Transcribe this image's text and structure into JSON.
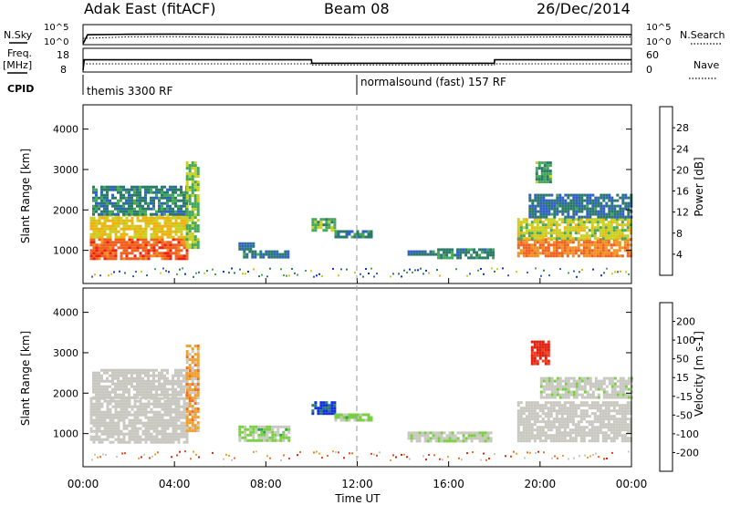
{
  "header": {
    "radar": "Adak East (fitACF)",
    "beam": "Beam 08",
    "date": "26/Dec/2014"
  },
  "left_labels": {
    "nsky": "N.Sky",
    "freq_top": "Freq.",
    "freq_unit": "[MHz]",
    "cpid": "CPID"
  },
  "right_labels": {
    "nsearch": "N.Search",
    "nave": "Nave"
  },
  "ticks": {
    "noise_left": [
      "10^5",
      "10^0"
    ],
    "noise_right": [
      "10^5",
      "10^0"
    ],
    "freq_left": [
      "18",
      "8"
    ],
    "freq_right": [
      "60",
      "0"
    ]
  },
  "cpid": {
    "program1": "themis 3300 RF",
    "program2": "normalsound (fast) 157 RF"
  },
  "colors": {
    "power": [
      "#1030e0",
      "#3060c8",
      "#2a7a6a",
      "#44a858",
      "#c8d020",
      "#f0b010",
      "#f09020",
      "#f06020",
      "#f02010"
    ],
    "velocity": [
      "#e02010",
      "#f04020",
      "#f07020",
      "#f0a030",
      "#c8c8c0",
      "#c8c8c0",
      "#78d040",
      "#30a050",
      "#2a7a6a",
      "#1030e0"
    ],
    "power_scale": "#f02010"
  },
  "chart_data": [
    {
      "type": "line",
      "title": "N.Sky / N.Search",
      "x_range_hours": [
        0,
        24
      ],
      "ylim_log10": [
        0,
        5
      ],
      "series": [
        {
          "name": "N.Sky",
          "x": [
            0,
            0.2,
            2,
            4,
            6,
            8,
            10,
            12,
            14,
            16,
            18,
            20,
            22,
            24
          ],
          "values": [
            1,
            300,
            400,
            450,
            400,
            380,
            350,
            320,
            340,
            330,
            320,
            330,
            350,
            340
          ]
        },
        {
          "name": "N.Search",
          "x": [
            0,
            2,
            4,
            6,
            8,
            10,
            12,
            14,
            16,
            18,
            20,
            22,
            24
          ],
          "values": [
            30,
            80,
            90,
            60,
            70,
            60,
            50,
            55,
            60,
            60,
            70,
            80,
            75
          ]
        }
      ]
    },
    {
      "type": "line",
      "title": "Freq. / Nave",
      "x_range_hours": [
        0,
        24
      ],
      "ylim_left": [
        8,
        18
      ],
      "ylim_right": [
        0,
        60
      ],
      "series": [
        {
          "name": "Freq. [MHz]",
          "x": [
            0,
            0.05,
            10.0,
            10.01,
            18.0,
            18.01,
            24
          ],
          "values": [
            8,
            14,
            14,
            12,
            12,
            14,
            14
          ]
        },
        {
          "name": "Nave",
          "x": [
            0,
            10,
            10.01,
            18,
            18.01,
            24
          ],
          "values": [
            22,
            22,
            18,
            18,
            22,
            22
          ]
        }
      ]
    },
    {
      "type": "heatmap",
      "title": "Power",
      "xlabel": "",
      "ylabel": "Slant Range [km]",
      "x_range_hours": [
        0,
        24
      ],
      "ylim": [
        180,
        4600
      ],
      "colorbar": {
        "label": "Power [dB]",
        "range": [
          0,
          32
        ],
        "ticks": [
          "4",
          "8",
          "12",
          "16",
          "20",
          "24",
          "28"
        ]
      },
      "regions": [
        {
          "x0": 0.3,
          "x1": 4.6,
          "y0": 780,
          "y1": 1300,
          "value": 27
        },
        {
          "x0": 0.3,
          "x1": 4.6,
          "y0": 1300,
          "y1": 1900,
          "value": 18
        },
        {
          "x0": 0.4,
          "x1": 4.5,
          "y0": 1900,
          "y1": 2600,
          "value": 9
        },
        {
          "x0": 4.5,
          "x1": 5.0,
          "y0": 1100,
          "y1": 3200,
          "value": 14
        },
        {
          "x0": 6.8,
          "x1": 7.5,
          "y0": 1050,
          "y1": 1200,
          "value": 7
        },
        {
          "x0": 7.0,
          "x1": 9.0,
          "y0": 850,
          "y1": 1000,
          "value": 8
        },
        {
          "x0": 10.0,
          "x1": 11.0,
          "y0": 1500,
          "y1": 1800,
          "value": 13
        },
        {
          "x0": 11.0,
          "x1": 12.6,
          "y0": 1300,
          "y1": 1500,
          "value": 9
        },
        {
          "x0": 14.2,
          "x1": 15.4,
          "y0": 900,
          "y1": 1000,
          "value": 8
        },
        {
          "x0": 15.5,
          "x1": 18.0,
          "y0": 800,
          "y1": 1050,
          "value": 9
        },
        {
          "x0": 19.0,
          "x1": 24.0,
          "y0": 850,
          "y1": 1300,
          "value": 25
        },
        {
          "x0": 19.0,
          "x1": 24.0,
          "y0": 1300,
          "y1": 1800,
          "value": 16
        },
        {
          "x0": 19.5,
          "x1": 24.0,
          "y0": 1800,
          "y1": 2400,
          "value": 8
        },
        {
          "x0": 19.8,
          "x1": 20.4,
          "y0": 2700,
          "y1": 3200,
          "value": 12
        }
      ]
    },
    {
      "type": "heatmap",
      "title": "Velocity",
      "xlabel": "Time UT",
      "ylabel": "Slant Range [km]",
      "x_range_hours": [
        0,
        24
      ],
      "x_tick_labels": [
        "00:00",
        "04:00",
        "08:00",
        "12:00",
        "16:00",
        "20:00",
        "00:00"
      ],
      "ylim": [
        180,
        4600
      ],
      "colorbar": {
        "label": "Velocity [m s-1]",
        "range": [
          -250,
          250
        ],
        "ticks": [
          "200",
          "100",
          "50",
          "15",
          "-15",
          "-50",
          "-100",
          "-200"
        ]
      },
      "regions": [
        {
          "x0": 0.3,
          "x1": 4.6,
          "y0": 780,
          "y1": 1900,
          "value": 0
        },
        {
          "x0": 0.4,
          "x1": 4.5,
          "y0": 1900,
          "y1": 2600,
          "value": -5
        },
        {
          "x0": 4.5,
          "x1": 5.0,
          "y0": 1100,
          "y1": 3200,
          "value": -70
        },
        {
          "x0": 6.8,
          "x1": 9.0,
          "y0": 850,
          "y1": 1200,
          "value": 60
        },
        {
          "x0": 10.0,
          "x1": 11.0,
          "y0": 1500,
          "y1": 1800,
          "value": 220
        },
        {
          "x0": 11.0,
          "x1": 12.6,
          "y0": 1300,
          "y1": 1500,
          "value": 60
        },
        {
          "x0": 14.2,
          "x1": 17.9,
          "y0": 800,
          "y1": 1050,
          "value": 30
        },
        {
          "x0": 19.0,
          "x1": 24.0,
          "y0": 850,
          "y1": 1800,
          "value": 0
        },
        {
          "x0": 19.6,
          "x1": 20.4,
          "y0": 2700,
          "y1": 3300,
          "value": -220
        },
        {
          "x0": 20.0,
          "x1": 24.0,
          "y0": 1900,
          "y1": 2400,
          "value": 20
        }
      ]
    }
  ]
}
